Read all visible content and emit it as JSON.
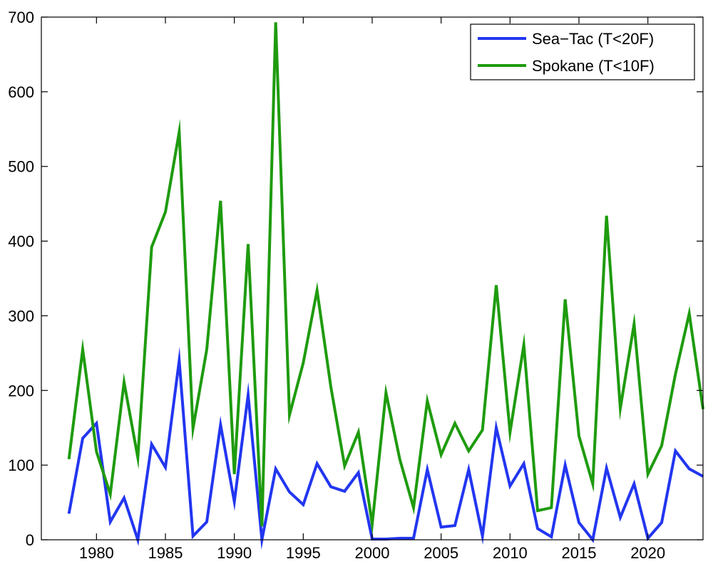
{
  "chart_data": {
    "type": "line",
    "title": "",
    "xlabel": "",
    "ylabel": "",
    "xlim": [
      1976,
      2024
    ],
    "ylim": [
      0,
      700
    ],
    "xticks": [
      1980,
      1985,
      1990,
      1995,
      2000,
      2005,
      2010,
      2015,
      2020
    ],
    "yticks": [
      0,
      100,
      200,
      300,
      400,
      500,
      600,
      700
    ],
    "grid": false,
    "legend_position": "top-right",
    "x": [
      1978,
      1979,
      1980,
      1981,
      1982,
      1983,
      1984,
      1985,
      1986,
      1987,
      1988,
      1989,
      1990,
      1991,
      1992,
      1993,
      1994,
      1995,
      1996,
      1997,
      1998,
      1999,
      2000,
      2001,
      2002,
      2003,
      2004,
      2005,
      2006,
      2007,
      2008,
      2009,
      2010,
      2011,
      2012,
      2013,
      2014,
      2015,
      2016,
      2017,
      2018,
      2019,
      2020,
      2021,
      2022,
      2023,
      2024
    ],
    "series": [
      {
        "name": "Sea−Tac (T<20F)",
        "color": "#2236f0",
        "values": [
          35,
          136,
          156,
          24,
          56,
          0,
          128,
          97,
          240,
          5,
          24,
          154,
          51,
          194,
          0,
          95,
          64,
          47,
          102,
          71,
          65,
          90,
          1,
          1,
          2,
          2,
          94,
          17,
          19,
          94,
          5,
          150,
          72,
          102,
          15,
          4,
          100,
          23,
          0,
          96,
          30,
          75,
          2,
          23,
          119,
          95,
          85
        ]
      },
      {
        "name": "Spokane (T<10F)",
        "color": "#1e9b0e",
        "values": [
          108,
          255,
          118,
          61,
          211,
          110,
          392,
          439,
          546,
          149,
          255,
          454,
          88,
          396,
          18,
          693,
          167,
          237,
          334,
          205,
          99,
          144,
          21,
          197,
          108,
          43,
          186,
          114,
          156,
          119,
          147,
          341,
          144,
          261,
          39,
          43,
          322,
          139,
          75,
          434,
          176,
          289,
          88,
          126,
          222,
          303,
          175
        ]
      }
    ]
  }
}
